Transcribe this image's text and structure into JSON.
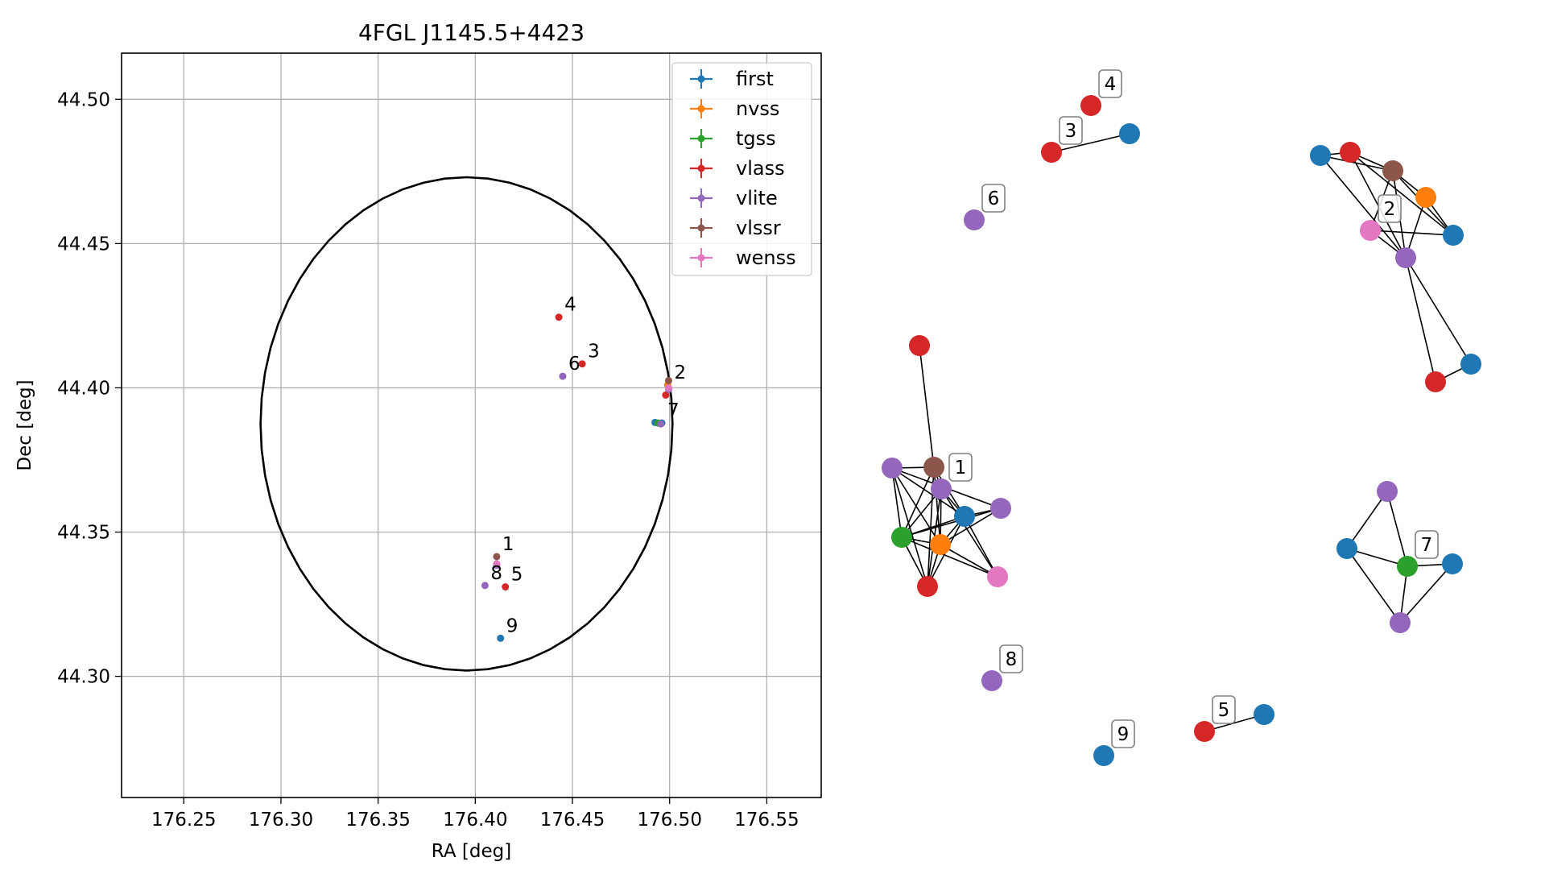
{
  "chart_data": [
    {
      "type": "scatter",
      "title": "4FGL J1145.5+4423",
      "xlabel": "RA [deg]",
      "ylabel": "Dec [deg]",
      "xlim": [
        176.218,
        176.578
      ],
      "ylim": [
        44.258,
        44.516
      ],
      "xticks": [
        176.25,
        176.3,
        176.35,
        176.4,
        176.45,
        176.5,
        176.55
      ],
      "xtick_labels": [
        "176.25",
        "176.30",
        "176.35",
        "176.40",
        "176.45",
        "176.50",
        "176.55"
      ],
      "yticks": [
        44.3,
        44.35,
        44.4,
        44.45,
        44.5
      ],
      "ytick_labels": [
        "44.30",
        "44.35",
        "44.40",
        "44.45",
        "44.50"
      ],
      "grid": true,
      "legend_position": "top-right",
      "ellipse": {
        "center": [
          176.3955,
          44.3875
        ],
        "ra_radius": 0.106,
        "dec_radius": 0.0855,
        "color": "#000000"
      },
      "series": [
        {
          "name": "first",
          "color": "#1f77b4",
          "points": [
            [
              176.4925,
              44.388
            ],
            [
              176.496,
              44.3878
            ],
            [
              176.413,
              44.3132
            ]
          ]
        },
        {
          "name": "nvss",
          "color": "#ff7f0e",
          "points": [
            [
              176.499,
              44.401
            ]
          ]
        },
        {
          "name": "tgss",
          "color": "#2ca02c",
          "points": [
            [
              176.494,
              44.3878
            ]
          ]
        },
        {
          "name": "vlass",
          "color": "#d62728",
          "points": [
            [
              176.443,
              44.4245
            ],
            [
              176.455,
              44.4083
            ],
            [
              176.498,
              44.3975
            ],
            [
              176.4155,
              44.331
            ]
          ]
        },
        {
          "name": "vlite",
          "color": "#9467bd",
          "points": [
            [
              176.445,
              44.404
            ],
            [
              176.4955,
              44.3875
            ],
            [
              176.4995,
              44.3995
            ],
            [
              176.405,
              44.3315
            ],
            [
              176.411,
              44.3385
            ]
          ]
        },
        {
          "name": "vlssr",
          "color": "#8c564b",
          "points": [
            [
              176.411,
              44.3415
            ],
            [
              176.4995,
              44.4025
            ]
          ]
        },
        {
          "name": "wenss",
          "color": "#e377c2",
          "points": [
            [
              176.411,
              44.339
            ],
            [
              176.4995,
              44.4
            ]
          ]
        }
      ],
      "annotations": [
        {
          "text": "1",
          "x": 176.411,
          "y": 44.3415
        },
        {
          "text": "2",
          "x": 176.4995,
          "y": 44.401
        },
        {
          "text": "3",
          "x": 176.455,
          "y": 44.4083
        },
        {
          "text": "4",
          "x": 176.443,
          "y": 44.4245
        },
        {
          "text": "5",
          "x": 176.4155,
          "y": 44.331
        },
        {
          "text": "6",
          "x": 176.445,
          "y": 44.404
        },
        {
          "text": "7",
          "x": 176.496,
          "y": 44.3878
        },
        {
          "text": "8",
          "x": 176.405,
          "y": 44.3315
        },
        {
          "text": "9",
          "x": 176.413,
          "y": 44.3132
        }
      ]
    },
    {
      "type": "network",
      "colors": {
        "first": "#1f77b4",
        "nvss": "#ff7f0e",
        "tgss": "#2ca02c",
        "vlass": "#d62728",
        "vlite": "#9467bd",
        "vlssr": "#8c564b",
        "wenss": "#e377c2"
      },
      "nodes": [
        {
          "id": "c1_vlass",
          "catalog": "vlass"
        },
        {
          "id": "c1_vlssr",
          "catalog": "vlssr"
        },
        {
          "id": "c1_vlite_a",
          "catalog": "vlite"
        },
        {
          "id": "c1_vlite_b",
          "catalog": "vlite"
        },
        {
          "id": "c1_first",
          "catalog": "first"
        },
        {
          "id": "c1_vlite_c",
          "catalog": "vlite"
        },
        {
          "id": "c1_tgss",
          "catalog": "tgss"
        },
        {
          "id": "c1_nvss",
          "catalog": "nvss"
        },
        {
          "id": "c1_vlass_b",
          "catalog": "vlass"
        },
        {
          "id": "c1_wenss",
          "catalog": "wenss"
        },
        {
          "id": "c2_first_a",
          "catalog": "first"
        },
        {
          "id": "c2_vlass_a",
          "catalog": "vlass"
        },
        {
          "id": "c2_vlssr",
          "catalog": "vlssr"
        },
        {
          "id": "c2_nvss",
          "catalog": "nvss"
        },
        {
          "id": "c2_wenss",
          "catalog": "wenss"
        },
        {
          "id": "c2_first_b",
          "catalog": "first"
        },
        {
          "id": "c2_vlite",
          "catalog": "vlite"
        },
        {
          "id": "c2_first_c",
          "catalog": "first"
        },
        {
          "id": "c2_vlass_b",
          "catalog": "vlass"
        },
        {
          "id": "c3_vlass",
          "catalog": "vlass"
        },
        {
          "id": "c3_first",
          "catalog": "first"
        },
        {
          "id": "c4_vlass",
          "catalog": "vlass"
        },
        {
          "id": "c5_vlass",
          "catalog": "vlass"
        },
        {
          "id": "c5_first",
          "catalog": "first"
        },
        {
          "id": "c6_vlite",
          "catalog": "vlite"
        },
        {
          "id": "c7_vlite_a",
          "catalog": "vlite"
        },
        {
          "id": "c7_first_a",
          "catalog": "first"
        },
        {
          "id": "c7_tgss",
          "catalog": "tgss"
        },
        {
          "id": "c7_first_b",
          "catalog": "first"
        },
        {
          "id": "c7_vlite_b",
          "catalog": "vlite"
        },
        {
          "id": "c8_vlite",
          "catalog": "vlite"
        },
        {
          "id": "c9_first",
          "catalog": "first"
        }
      ],
      "edges": [
        [
          "c1_vlass",
          "c1_vlssr"
        ],
        [
          "c1_vlite_a",
          "c1_vlssr"
        ],
        [
          "c1_vlite_a",
          "c1_first"
        ],
        [
          "c1_vlite_a",
          "c1_tgss"
        ],
        [
          "c1_vlite_a",
          "c1_nvss"
        ],
        [
          "c1_vlite_a",
          "c1_vlass_b"
        ],
        [
          "c1_vlite_a",
          "c1_wenss"
        ],
        [
          "c1_vlssr",
          "c1_vlite_b"
        ],
        [
          "c1_vlssr",
          "c1_tgss"
        ],
        [
          "c1_vlssr",
          "c1_nvss"
        ],
        [
          "c1_vlssr",
          "c1_vlass_b"
        ],
        [
          "c1_vlssr",
          "c1_first"
        ],
        [
          "c1_vlite_b",
          "c1_first"
        ],
        [
          "c1_vlite_b",
          "c1_vlite_c"
        ],
        [
          "c1_vlite_b",
          "c1_tgss"
        ],
        [
          "c1_vlite_b",
          "c1_nvss"
        ],
        [
          "c1_vlite_b",
          "c1_vlass_b"
        ],
        [
          "c1_first",
          "c1_vlite_c"
        ],
        [
          "c1_first",
          "c1_tgss"
        ],
        [
          "c1_first",
          "c1_nvss"
        ],
        [
          "c1_first",
          "c1_vlass_b"
        ],
        [
          "c1_first",
          "c1_wenss"
        ],
        [
          "c1_vlite_c",
          "c1_tgss"
        ],
        [
          "c1_vlite_c",
          "c1_nvss"
        ],
        [
          "c1_tgss",
          "c1_nvss"
        ],
        [
          "c1_tgss",
          "c1_vlass_b"
        ],
        [
          "c1_tgss",
          "c1_wenss"
        ],
        [
          "c1_nvss",
          "c1_vlass_b"
        ],
        [
          "c1_nvss",
          "c1_wenss"
        ],
        [
          "c2_first_a",
          "c2_vlass_a"
        ],
        [
          "c2_first_a",
          "c2_vlssr"
        ],
        [
          "c2_first_a",
          "c2_vlite"
        ],
        [
          "c2_vlass_a",
          "c2_vlssr"
        ],
        [
          "c2_vlass_a",
          "c2_vlite"
        ],
        [
          "c2_vlass_a",
          "c2_first_b"
        ],
        [
          "c2_vlssr",
          "c2_nvss"
        ],
        [
          "c2_vlssr",
          "c2_wenss"
        ],
        [
          "c2_vlssr",
          "c2_vlite"
        ],
        [
          "c2_vlssr",
          "c2_first_b"
        ],
        [
          "c2_nvss",
          "c2_first_b"
        ],
        [
          "c2_nvss",
          "c2_vlite"
        ],
        [
          "c2_wenss",
          "c2_first_b"
        ],
        [
          "c2_wenss",
          "c2_vlite"
        ],
        [
          "c2_vlite",
          "c2_vlass_b"
        ],
        [
          "c2_vlite",
          "c2_first_c"
        ],
        [
          "c2_vlass_b",
          "c2_first_c"
        ],
        [
          "c3_vlass",
          "c3_first"
        ],
        [
          "c5_vlass",
          "c5_first"
        ],
        [
          "c7_vlite_a",
          "c7_first_a"
        ],
        [
          "c7_vlite_a",
          "c7_tgss"
        ],
        [
          "c7_first_a",
          "c7_tgss"
        ],
        [
          "c7_first_a",
          "c7_vlite_b"
        ],
        [
          "c7_tgss",
          "c7_first_b"
        ],
        [
          "c7_tgss",
          "c7_vlite_b"
        ],
        [
          "c7_first_b",
          "c7_vlite_b"
        ]
      ],
      "labels": [
        {
          "text": "1",
          "node": "c1_vlite_a"
        },
        {
          "text": "2",
          "node": "c2_wenss"
        },
        {
          "text": "3",
          "node": "c3_vlass"
        },
        {
          "text": "4",
          "node": "c4_vlass"
        },
        {
          "text": "5",
          "node": "c5_vlass"
        },
        {
          "text": "6",
          "node": "c6_vlite"
        },
        {
          "text": "7",
          "node": "c7_tgss"
        },
        {
          "text": "8",
          "node": "c8_vlite"
        },
        {
          "text": "9",
          "node": "c9_first"
        }
      ]
    }
  ]
}
